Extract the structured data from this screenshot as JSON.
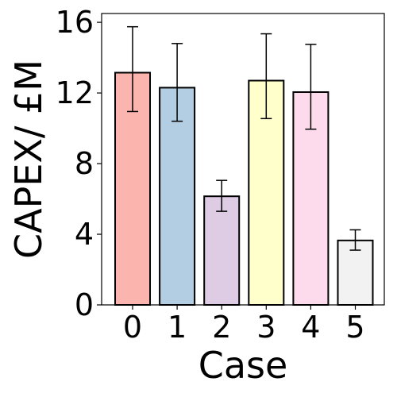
{
  "chart_data": {
    "type": "bar",
    "title": "",
    "xlabel": "Case",
    "ylabel": "CAPEX/ £M",
    "categories": [
      "0",
      "1",
      "2",
      "3",
      "4",
      "5"
    ],
    "values": [
      13.15,
      12.3,
      6.15,
      12.7,
      12.05,
      3.65
    ],
    "error_low": [
      10.95,
      10.4,
      5.3,
      10.55,
      9.95,
      3.1
    ],
    "error_high": [
      15.75,
      14.8,
      7.05,
      15.35,
      14.75,
      4.25
    ],
    "colors": [
      "#fbb4ae",
      "#b3cde3",
      "#decbe4",
      "#ffffcc",
      "#fddaec",
      "#f2f2f2"
    ],
    "ylim": [
      0,
      16.5
    ],
    "yticks": [
      "0",
      "4",
      "8",
      "12",
      "16"
    ],
    "grid": false,
    "legend": "none"
  }
}
